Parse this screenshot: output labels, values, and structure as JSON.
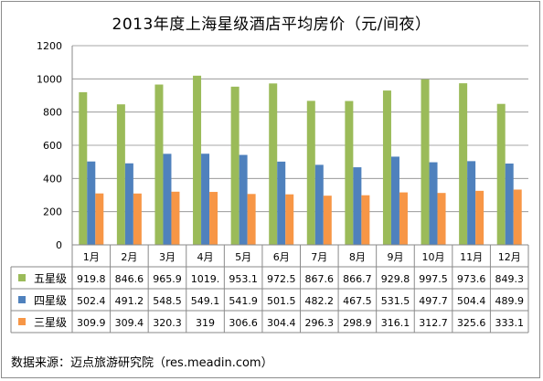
{
  "chart_data": {
    "type": "bar",
    "title": "2013年度上海星级酒店平均房价（元/间夜）",
    "categories": [
      "1月",
      "2月",
      "3月",
      "4月",
      "5月",
      "6月",
      "7月",
      "8月",
      "9月",
      "10月",
      "11月",
      "12月"
    ],
    "series": [
      {
        "name": "五星级",
        "color": "#9bbb59",
        "values": [
          919.8,
          846.6,
          965.9,
          1019.2,
          953.1,
          972.5,
          867.6,
          866.7,
          929.8,
          997.5,
          973.6,
          849.3
        ],
        "labels": [
          "919.8",
          "846.6",
          "965.9",
          "1019.",
          "953.1",
          "972.5",
          "867.6",
          "866.7",
          "929.8",
          "997.5",
          "973.6",
          "849.3"
        ]
      },
      {
        "name": "四星级",
        "color": "#4f81bd",
        "values": [
          502.4,
          491.2,
          548.5,
          549.1,
          541.9,
          501.5,
          482.2,
          467.5,
          531.5,
          497.7,
          504.4,
          489.9
        ],
        "labels": [
          "502.4",
          "491.2",
          "548.5",
          "549.1",
          "541.9",
          "501.5",
          "482.2",
          "467.5",
          "531.5",
          "497.7",
          "504.4",
          "489.9"
        ]
      },
      {
        "name": "三星级",
        "color": "#f79646",
        "values": [
          309.9,
          309.4,
          320.3,
          319,
          306.6,
          304.4,
          296.3,
          298.9,
          316.1,
          312.7,
          325.6,
          333.1
        ],
        "labels": [
          "309.9",
          "309.4",
          "320.3",
          "319",
          "306.6",
          "304.4",
          "296.3",
          "298.9",
          "316.1",
          "312.7",
          "325.6",
          "333.1"
        ]
      }
    ],
    "yticks": [
      "0",
      "200",
      "400",
      "600",
      "800",
      "1000",
      "1200"
    ],
    "ylim": [
      0,
      1200
    ],
    "grid": true,
    "legend": "data-table"
  },
  "footer": {
    "source": "数据来源：迈点旅游研究院（res.meadin.com）"
  }
}
